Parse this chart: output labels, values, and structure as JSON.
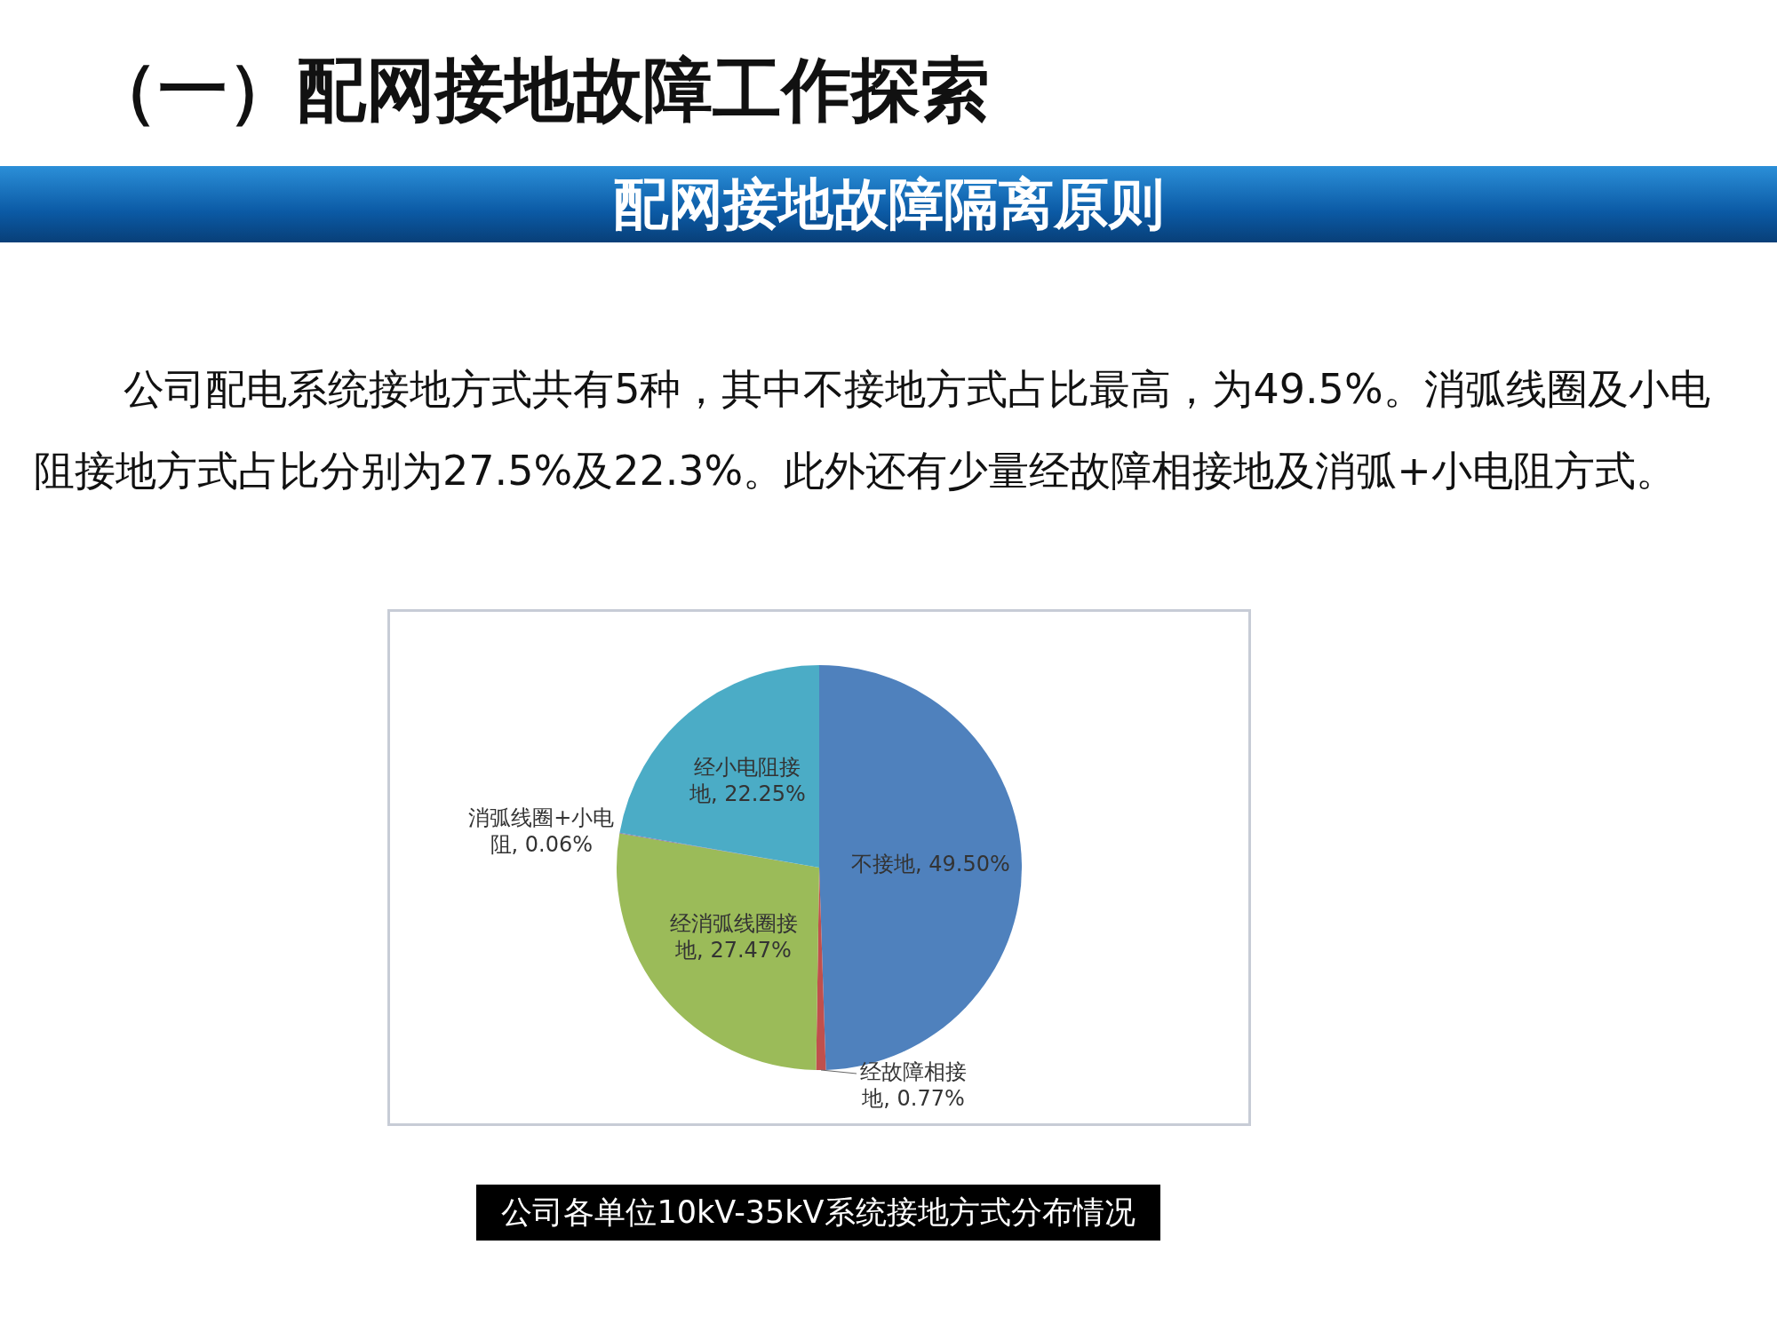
{
  "chart_data": {
    "type": "pie",
    "title": "（一）配网接地故障工作探索",
    "subtitle": "配网接地故障隔离原则",
    "annotations": [
      "公司配电系统接地方式共有5种，其中不接地方式占比最高，为49.5%。消弧线圈及小电阻接地方式占比分别为27.5%及22.3%。此外还有少量经故障相接地及消弧+小电阻方式。",
      "公司各单位10kV-35kV系统接地方式分布情况"
    ],
    "categories": [
      "不接地",
      "经故障相接地",
      "经消弧线圈接地",
      "消弧线圈+小电阻",
      "经小电阻接地"
    ],
    "values": [
      49.5,
      0.77,
      27.47,
      0.06,
      22.25
    ],
    "value_labels": [
      "49.50%",
      "0.77%",
      "27.47%",
      "0.06%",
      "22.25%"
    ],
    "colors": [
      "#4f81bd",
      "#c0504d",
      "#9bbb59",
      "#8064a2",
      "#4bacc6"
    ],
    "legend": false
  }
}
